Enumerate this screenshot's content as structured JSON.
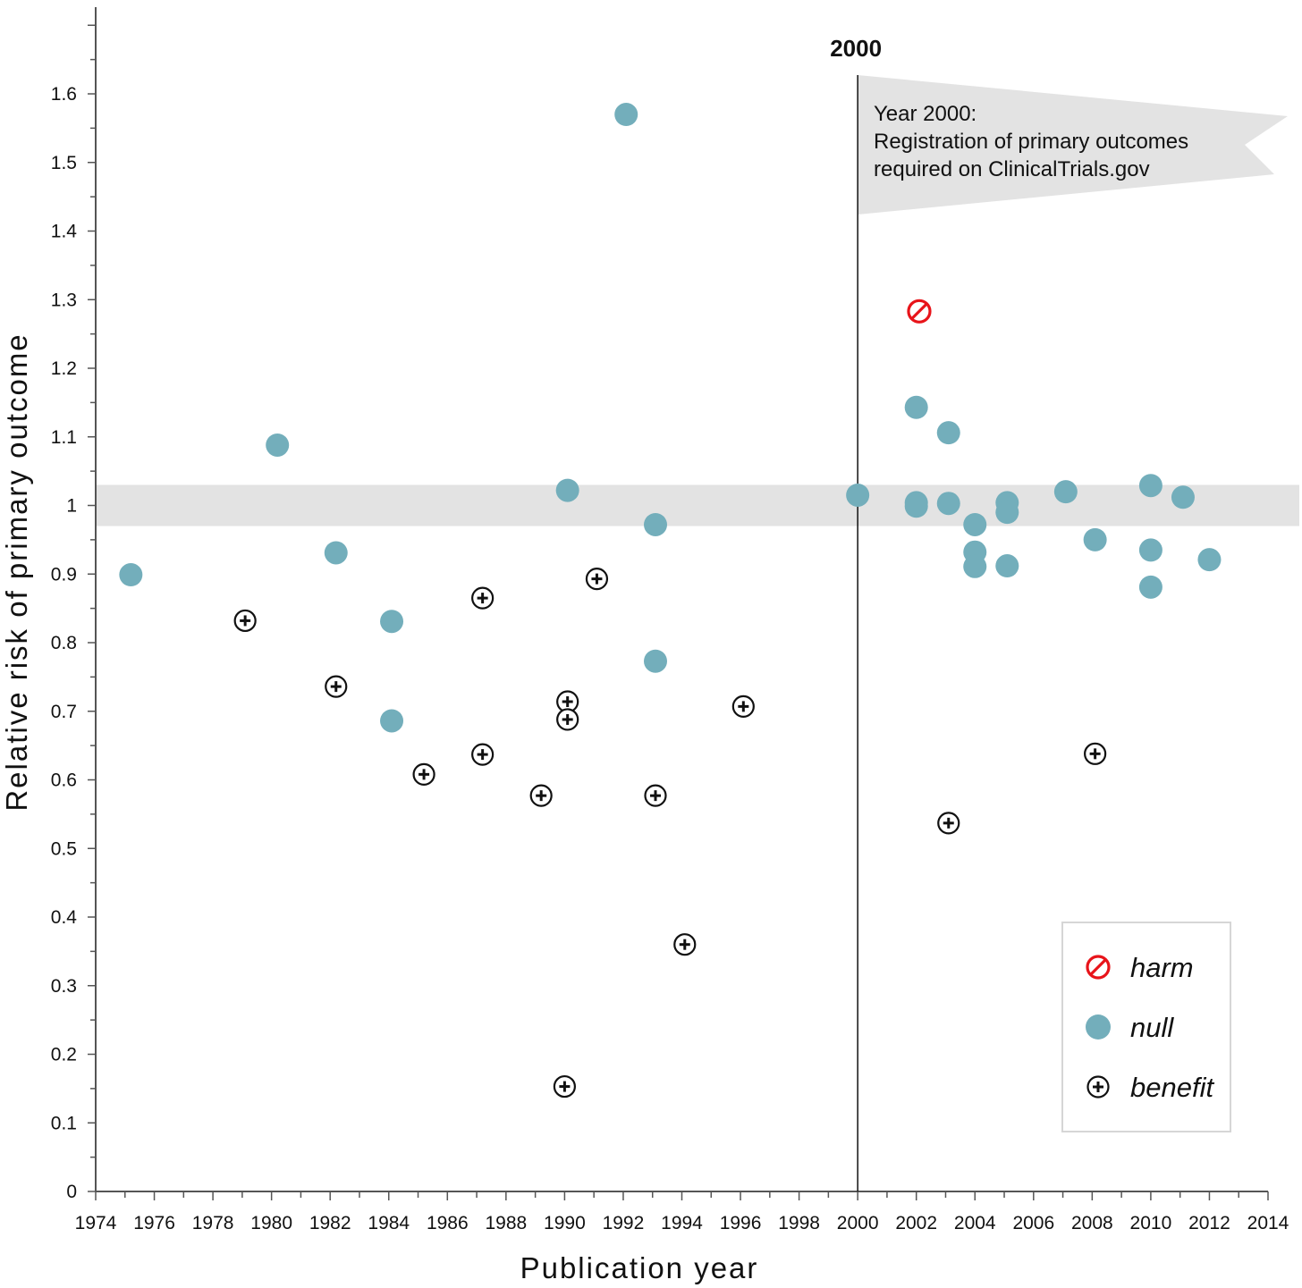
{
  "chart_data": {
    "type": "scatter",
    "xlabel": "Publication year",
    "ylabel": "Relative risk of primary outcome",
    "xlim": [
      1974,
      2014
    ],
    "ylim": [
      0,
      1.7
    ],
    "x_ticks": [
      1974,
      1976,
      1978,
      1980,
      1982,
      1984,
      1986,
      1988,
      1990,
      1992,
      1994,
      1996,
      1998,
      2000,
      2002,
      2004,
      2006,
      2008,
      2010,
      2012,
      2014
    ],
    "y_ticks": [
      0,
      0.1,
      0.2,
      0.3,
      0.4,
      0.5,
      0.6,
      0.7,
      0.8,
      0.9,
      1,
      1.1,
      1.2,
      1.3,
      1.4,
      1.5,
      1.6
    ],
    "y_tick_labels": [
      "0",
      "0.1",
      "0.2",
      "0.3",
      "0.4",
      "0.5",
      "0.6",
      "0.7",
      "0.8",
      "0.9",
      "1",
      "1.1",
      "1.2",
      "1.3",
      "1.4",
      "1.5",
      "1.6"
    ],
    "null_band": [
      0.97,
      1.03
    ],
    "reference_line": {
      "x": 2000,
      "label": "2000"
    },
    "annotation": {
      "lines": [
        "Year 2000:",
        "Registration of primary outcomes",
        "required on ClinicalTrials.gov"
      ]
    },
    "legend": {
      "position": "bottom-right",
      "entries": [
        {
          "key": "harm",
          "label": "harm"
        },
        {
          "key": "null",
          "label": "null"
        },
        {
          "key": "benefit",
          "label": "benefit"
        }
      ]
    },
    "colors": {
      "harm": "#e8141a",
      "null": "#73aebb",
      "benefit": "#111111",
      "band": "#e3e3e3",
      "flag": "#e3e3e3",
      "axis": "#555555"
    },
    "series": [
      {
        "name": "harm",
        "points": [
          {
            "x": 2002.1,
            "y": 1.283
          }
        ]
      },
      {
        "name": "null",
        "points": [
          {
            "x": 1975.2,
            "y": 0.899
          },
          {
            "x": 1980.2,
            "y": 1.088
          },
          {
            "x": 1982.2,
            "y": 0.931
          },
          {
            "x": 1984.1,
            "y": 0.831
          },
          {
            "x": 1984.1,
            "y": 0.686
          },
          {
            "x": 1990.1,
            "y": 1.022
          },
          {
            "x": 1992.1,
            "y": 1.57
          },
          {
            "x": 1993.1,
            "y": 0.972
          },
          {
            "x": 1993.1,
            "y": 0.773
          },
          {
            "x": 2000.0,
            "y": 1.015
          },
          {
            "x": 2002.0,
            "y": 1.143
          },
          {
            "x": 2002.0,
            "y": 1.004
          },
          {
            "x": 2002.0,
            "y": 0.999
          },
          {
            "x": 2003.1,
            "y": 1.106
          },
          {
            "x": 2003.1,
            "y": 1.003
          },
          {
            "x": 2004.0,
            "y": 0.972
          },
          {
            "x": 2004.0,
            "y": 0.932
          },
          {
            "x": 2004.0,
            "y": 0.911
          },
          {
            "x": 2005.1,
            "y": 1.004
          },
          {
            "x": 2005.1,
            "y": 0.99
          },
          {
            "x": 2005.1,
            "y": 0.912
          },
          {
            "x": 2007.1,
            "y": 1.02
          },
          {
            "x": 2008.1,
            "y": 0.95
          },
          {
            "x": 2010.0,
            "y": 1.029
          },
          {
            "x": 2010.0,
            "y": 0.935
          },
          {
            "x": 2010.0,
            "y": 0.881
          },
          {
            "x": 2011.1,
            "y": 1.012
          },
          {
            "x": 2012.0,
            "y": 0.921
          }
        ]
      },
      {
        "name": "benefit",
        "points": [
          {
            "x": 1979.1,
            "y": 0.832
          },
          {
            "x": 1982.2,
            "y": 0.736
          },
          {
            "x": 1985.2,
            "y": 0.608
          },
          {
            "x": 1987.2,
            "y": 0.865
          },
          {
            "x": 1987.2,
            "y": 0.637
          },
          {
            "x": 1989.2,
            "y": 0.577
          },
          {
            "x": 1990.1,
            "y": 0.714
          },
          {
            "x": 1990.1,
            "y": 0.688
          },
          {
            "x": 1990.0,
            "y": 0.153
          },
          {
            "x": 1991.1,
            "y": 0.893
          },
          {
            "x": 1993.1,
            "y": 0.577
          },
          {
            "x": 1994.1,
            "y": 0.36
          },
          {
            "x": 1996.1,
            "y": 0.707
          },
          {
            "x": 2003.1,
            "y": 0.537
          },
          {
            "x": 2008.1,
            "y": 0.638
          }
        ]
      }
    ]
  }
}
